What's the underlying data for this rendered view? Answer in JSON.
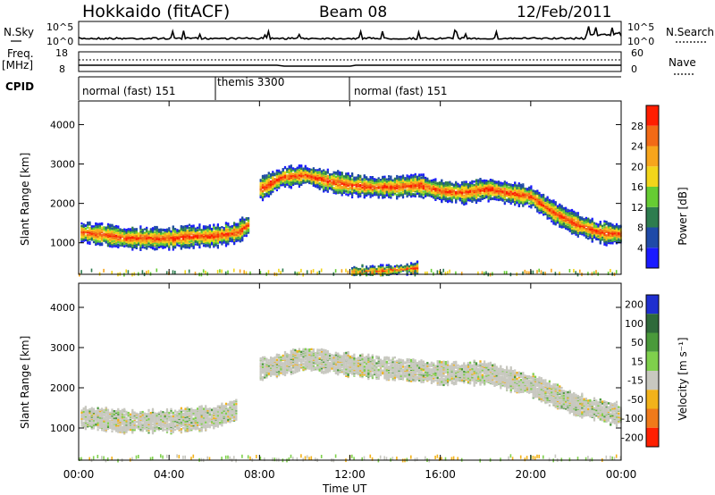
{
  "header": {
    "station": "Hokkaido (fitACF)",
    "beam": "Beam 08",
    "date": "12/Feb/2011"
  },
  "noise_panel": {
    "left_label": "N.Sky",
    "right_label": "N.Search",
    "tick_top": "10^5",
    "tick_bottom": "10^0"
  },
  "freq_panel": {
    "left_label_1": "Freq.",
    "left_label_2": "[MHz]",
    "left_tick_top": "18",
    "left_tick_bottom": "8",
    "right_label": "Nave",
    "right_tick_top": "60",
    "right_tick_bottom": "0"
  },
  "cpid_panel": {
    "label": "CPID",
    "segments": [
      {
        "start_ut": 0,
        "end_ut": 6,
        "name": "normal (fast) 151"
      },
      {
        "start_ut": 6,
        "end_ut": 12,
        "name": "themis 3300"
      },
      {
        "start_ut": 12,
        "end_ut": 24,
        "name": "normal (fast) 151"
      }
    ]
  },
  "x_axis": {
    "label": "Time UT",
    "ticks": [
      "00:00",
      "04:00",
      "08:00",
      "12:00",
      "16:00",
      "20:00",
      "00:00"
    ]
  },
  "chart_data": [
    {
      "type": "heatmap",
      "name": "power",
      "ylabel": "Slant Range [km]",
      "yticks": [
        "1000",
        "2000",
        "3000",
        "4000"
      ],
      "ylim": [
        200,
        4600
      ],
      "xlim_hours": [
        0,
        24
      ],
      "colorbar": {
        "label": "Power [dB]",
        "ticks": [
          "4",
          "8",
          "12",
          "16",
          "20",
          "24",
          "28"
        ],
        "colors": [
          "#1a1aff",
          "#1f4aa8",
          "#2e7d4f",
          "#66cc33",
          "#f2d51a",
          "#f7a51c",
          "#f26a16",
          "#ff1e00"
        ]
      },
      "bands": [
        {
          "name": "main echo lower",
          "t": [
            0,
            1,
            2,
            3,
            4,
            5,
            6,
            6.5,
            7,
            7.5
          ],
          "range_km": [
            1300,
            1250,
            1150,
            1150,
            1150,
            1200,
            1200,
            1250,
            1300,
            1500
          ]
        },
        {
          "name": "main echo upper",
          "t": [
            8,
            9,
            10,
            11,
            12,
            13,
            14,
            15,
            16,
            17,
            18,
            19,
            20,
            21,
            22,
            23,
            24
          ],
          "range_km": [
            2400,
            2700,
            2750,
            2600,
            2500,
            2450,
            2450,
            2500,
            2350,
            2300,
            2400,
            2300,
            2200,
            1800,
            1500,
            1300,
            1250
          ]
        },
        {
          "name": "near range",
          "t": [
            12,
            13,
            14,
            15
          ],
          "range_km": [
            300,
            300,
            350,
            400
          ]
        }
      ]
    },
    {
      "type": "heatmap",
      "name": "velocity",
      "ylabel": "Slant Range [km]",
      "yticks": [
        "1000",
        "2000",
        "3000",
        "4000"
      ],
      "ylim": [
        200,
        4600
      ],
      "xlim_hours": [
        0,
        24
      ],
      "colorbar": {
        "label": "Velocity [m s⁻¹]",
        "ticks": [
          "200",
          "100",
          "50",
          "15",
          "-15",
          "-50",
          "-100",
          "-200"
        ],
        "colors": [
          "#1f2fd0",
          "#2f6a3a",
          "#4a9a3a",
          "#7fd04c",
          "#c8c8c0",
          "#f2b21a",
          "#f07a1a",
          "#ff2000"
        ]
      },
      "bands": [
        {
          "name": "ground scatter lower",
          "t": [
            0,
            2,
            4,
            6,
            7
          ],
          "range_km": [
            1300,
            1200,
            1200,
            1300,
            1500
          ]
        },
        {
          "name": "ground scatter upper",
          "t": [
            8,
            10,
            12,
            14,
            16,
            18,
            20,
            22,
            24
          ],
          "range_km": [
            2500,
            2750,
            2600,
            2500,
            2400,
            2400,
            2100,
            1600,
            1350
          ]
        }
      ]
    }
  ]
}
